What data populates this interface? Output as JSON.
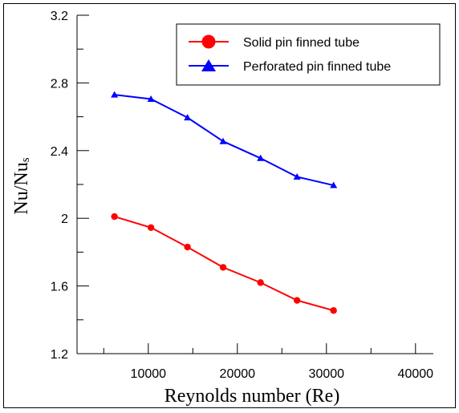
{
  "chart_data": {
    "type": "line",
    "xlabel": "Reynolds number (Re)",
    "ylabel": "Nu/Nu",
    "ylabel_sub": "s",
    "xlim": [
      2000,
      42000
    ],
    "ylim": [
      1.2,
      3.2
    ],
    "xticks": [
      10000,
      20000,
      30000,
      40000
    ],
    "xticks_minor": [
      5000,
      15000,
      25000,
      35000
    ],
    "yticks": [
      1.2,
      1.6,
      2,
      2.4,
      2.8,
      3.2
    ],
    "yticks_minor": [
      1.4,
      1.8,
      2.2,
      2.6,
      3.0
    ],
    "ytick_labels": [
      "1.2",
      "1.6",
      "2",
      "2.4",
      "2.8",
      "3.2"
    ],
    "xtick_labels": [
      "10000",
      "20000",
      "30000",
      "40000"
    ],
    "legend_position": "top-right",
    "grid": false,
    "series": [
      {
        "name": "Solid pin finned tube",
        "color": "#ff0000",
        "marker": "circle",
        "x": [
          6200,
          10300,
          14400,
          18400,
          22600,
          26700,
          30800
        ],
        "y": [
          2.01,
          1.945,
          1.83,
          1.71,
          1.62,
          1.515,
          1.455
        ]
      },
      {
        "name": "Perforated pin finned tube",
        "color": "#0000ff",
        "marker": "triangle",
        "x": [
          6200,
          10300,
          14400,
          18400,
          22600,
          26700,
          30800
        ],
        "y": [
          2.73,
          2.705,
          2.595,
          2.455,
          2.355,
          2.245,
          2.195
        ]
      }
    ]
  }
}
